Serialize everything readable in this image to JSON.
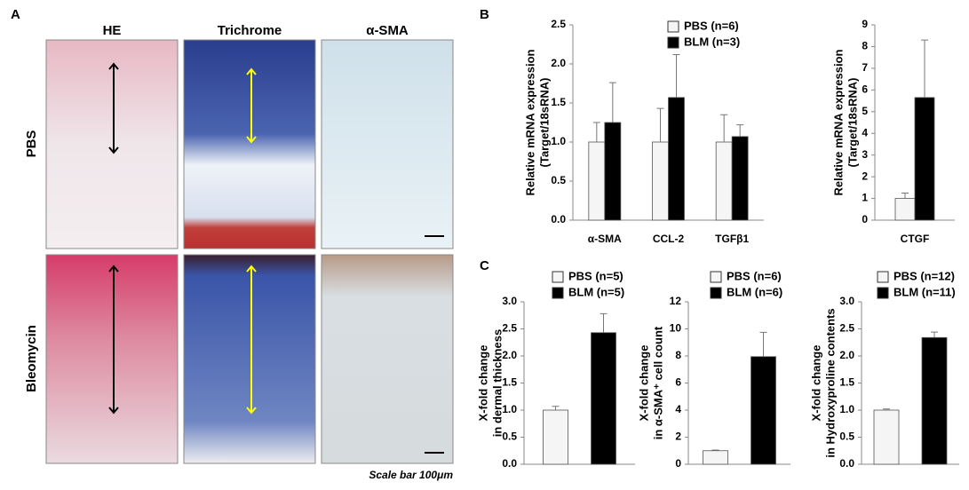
{
  "labels": {
    "a": "A",
    "b": "B",
    "c": "C"
  },
  "panel_a": {
    "columns": [
      "HE",
      "Trichrome",
      "α-SMA"
    ],
    "rows": [
      "PBS",
      "Bleomycin"
    ],
    "scale_bar": "Scale bar 100μm"
  },
  "chart_data": [
    {
      "type": "bar",
      "ylabel": [
        "Relative mRNA expression",
        "(Target/18sRNA)"
      ],
      "categories": [
        "α-SMA",
        "CCL-2",
        "TGFβ1"
      ],
      "series": [
        {
          "name": "PBS (n=6)",
          "color": "#f5f5f5",
          "values": [
            1,
            1,
            1
          ],
          "errors": [
            0.25,
            0.43,
            0.35
          ]
        },
        {
          "name": "BLM (n=3)",
          "color": "#000000",
          "values": [
            1.25,
            1.57,
            1.07
          ],
          "errors": [
            0.51,
            0.55,
            0.15
          ]
        }
      ],
      "ylim": [
        0,
        2.5
      ],
      "yticks": [
        {
          "value": 0,
          "label": "0.0"
        },
        {
          "value": 0.5,
          "label": "0.5"
        },
        {
          "value": 1,
          "label": "1.0"
        },
        {
          "value": 1.5,
          "label": "1.5"
        },
        {
          "value": 2,
          "label": "2.0"
        },
        {
          "value": 2.5,
          "label": "2.5"
        }
      ]
    },
    {
      "type": "bar",
      "ylabel": [
        "Relative mRNA expression",
        "(Target/18sRNA)"
      ],
      "categories": [
        "CTGF"
      ],
      "series": [
        {
          "color": "#f5f5f5",
          "values": [
            1
          ],
          "errors": [
            0.25
          ]
        },
        {
          "color": "#000000",
          "values": [
            5.65
          ],
          "errors": [
            2.65
          ]
        }
      ],
      "ylim": [
        0,
        9
      ],
      "yticks": [
        0,
        1,
        2,
        3,
        4,
        5,
        6,
        7,
        8,
        9
      ]
    },
    {
      "type": "bar",
      "ylabel": [
        "X-fold change",
        "in dermal thickness"
      ],
      "categories": [
        null
      ],
      "series": [
        {
          "name": "PBS (n=5)",
          "color": "#f5f5f5",
          "values": [
            1
          ],
          "errors": [
            0.07
          ]
        },
        {
          "name": "BLM (n=5)",
          "color": "#000000",
          "values": [
            2.43
          ],
          "errors": [
            0.35
          ]
        }
      ],
      "ylim": [
        0,
        3
      ],
      "yticks": [
        {
          "value": 0,
          "label": "0.0"
        },
        {
          "value": 0.5,
          "label": "0.5"
        },
        {
          "value": 1,
          "label": "1.0"
        },
        {
          "value": 1.5,
          "label": "1.5"
        },
        {
          "value": 2,
          "label": "2.0"
        },
        {
          "value": 2.5,
          "label": "2.5"
        },
        {
          "value": 3,
          "label": "3.0"
        }
      ]
    },
    {
      "type": "bar",
      "ylabel": [
        "X-fold change",
        "in α-SMA⁺ cell count"
      ],
      "categories": [
        null
      ],
      "series": [
        {
          "name": "PBS (n=6)",
          "color": "#f5f5f5",
          "values": [
            1
          ],
          "errors": [
            0.05
          ]
        },
        {
          "name": "BLM (n=6)",
          "color": "#000000",
          "values": [
            7.95
          ],
          "errors": [
            1.8
          ]
        }
      ],
      "ylim": [
        0,
        12
      ],
      "yticks": [
        0,
        2,
        4,
        6,
        8,
        10,
        12
      ]
    },
    {
      "type": "bar",
      "ylabel": [
        "X-fold change",
        "in Hydroxyproline contents"
      ],
      "categories": [
        null
      ],
      "series": [
        {
          "name": "PBS (n=12)",
          "color": "#f5f5f5",
          "values": [
            1
          ],
          "errors": [
            0.02
          ]
        },
        {
          "name": "BLM (n=11)",
          "color": "#000000",
          "values": [
            2.34
          ],
          "errors": [
            0.1
          ]
        }
      ],
      "ylim": [
        0,
        3
      ],
      "yticks": [
        {
          "value": 0,
          "label": "0.0"
        },
        {
          "value": 0.5,
          "label": "0.5"
        },
        {
          "value": 1,
          "label": "1.0"
        },
        {
          "value": 1.5,
          "label": "1.5"
        },
        {
          "value": 2,
          "label": "2.0"
        },
        {
          "value": 2.5,
          "label": "2.5"
        },
        {
          "value": 3,
          "label": "3.0"
        }
      ]
    }
  ]
}
